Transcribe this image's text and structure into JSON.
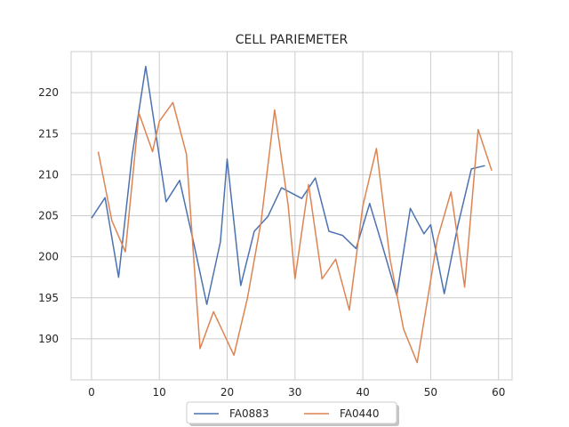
{
  "chart_data": {
    "type": "line",
    "title": "CELL PARIEMETER",
    "xlabel": "",
    "ylabel": "",
    "xlim": [
      -3,
      62
    ],
    "ylim": [
      185,
      225
    ],
    "xticks": [
      0,
      10,
      20,
      30,
      40,
      50,
      60
    ],
    "yticks": [
      190,
      195,
      200,
      205,
      210,
      215,
      220
    ],
    "grid": true,
    "legend_position": "bottom-center",
    "series": [
      {
        "name": "FA0883",
        "color": "#4c72b0",
        "x": [
          0,
          2,
          4,
          6,
          8,
          11,
          13,
          15,
          17,
          19,
          20,
          22,
          24,
          26,
          28,
          31,
          33,
          35,
          37,
          39,
          41,
          43,
          45,
          47,
          49,
          50,
          52,
          54,
          56,
          58
        ],
        "y": [
          204.7,
          207.2,
          197.5,
          212.4,
          223.2,
          206.7,
          209.3,
          201.9,
          194.2,
          201.8,
          211.9,
          196.5,
          203.1,
          204.9,
          208.4,
          207.1,
          209.6,
          203.1,
          202.6,
          201.0,
          206.5,
          201.0,
          195.3,
          205.9,
          202.8,
          203.9,
          195.5,
          203.8,
          210.7,
          211.1
        ]
      },
      {
        "name": "FA0440",
        "color": "#dd8452",
        "x": [
          1,
          3,
          5,
          7,
          9,
          10,
          12,
          14,
          16,
          18,
          21,
          23,
          25,
          27,
          29,
          30,
          32,
          34,
          36,
          38,
          40,
          42,
          44,
          46,
          48,
          51,
          53,
          55,
          57,
          59
        ],
        "y": [
          212.8,
          204.4,
          200.6,
          217.5,
          212.8,
          216.5,
          218.8,
          212.5,
          188.8,
          193.3,
          188.0,
          195.0,
          204.3,
          217.9,
          206.2,
          197.3,
          208.8,
          197.3,
          199.7,
          193.5,
          206.2,
          213.2,
          199.8,
          191.2,
          187.1,
          202.2,
          207.9,
          196.3,
          215.5,
          210.5
        ]
      }
    ]
  }
}
